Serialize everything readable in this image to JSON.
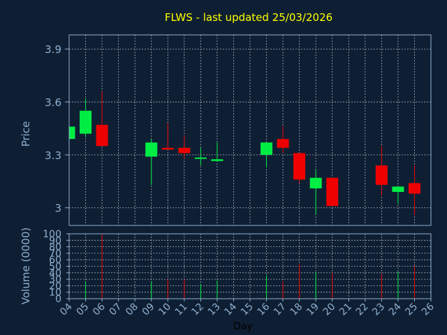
{
  "chart_data": {
    "type": "candlestick",
    "title": "FLWS - last updated 25/03/2026",
    "colors": {
      "background": "#0f1f33",
      "title": "#ffff00",
      "axis_text": "#8fb0d0",
      "grid": "#c8d4e0",
      "frame": "#8fb0d0",
      "up": "#00ee44",
      "down": "#ee0000",
      "xlabel": "#000000"
    },
    "price_panel": {
      "ylabel": "Price",
      "ylim": [
        2.9,
        3.98
      ],
      "yticks": [
        3,
        3.3,
        3.6,
        3.9
      ],
      "ytick_labels": [
        "3",
        "3.3",
        "3.6",
        "3.9"
      ]
    },
    "volume_panel": {
      "ylabel": "Volume (0000)",
      "ylim": [
        0,
        100
      ],
      "yticks": [
        0,
        10,
        20,
        30,
        40,
        50,
        60,
        70,
        80,
        90,
        100
      ],
      "ytick_labels": [
        "0",
        "10",
        "20",
        "30",
        "40",
        "50",
        "60",
        "70",
        "80",
        "90",
        "100"
      ]
    },
    "x_axis": {
      "xlabel": "Day",
      "ticks": [
        "04",
        "05",
        "06",
        "07",
        "08",
        "09",
        "10",
        "11",
        "12",
        "13",
        "14",
        "15",
        "16",
        "17",
        "18",
        "19",
        "20",
        "21",
        "22",
        "23",
        "24",
        "25",
        "26"
      ]
    },
    "candles": [
      {
        "day": "04",
        "open": 3.39,
        "high": 3.46,
        "low": 3.39,
        "close": 3.46,
        "volume": 0
      },
      {
        "day": "05",
        "open": 3.42,
        "high": 3.62,
        "low": 3.4,
        "close": 3.55,
        "volume": 27
      },
      {
        "day": "06",
        "open": 3.47,
        "high": 3.66,
        "low": 3.35,
        "close": 3.35,
        "volume": 100
      },
      {
        "day": "09",
        "open": 3.29,
        "high": 3.39,
        "low": 3.13,
        "close": 3.37,
        "volume": 27
      },
      {
        "day": "10",
        "open": 3.34,
        "high": 3.48,
        "low": 3.33,
        "close": 3.33,
        "volume": 30
      },
      {
        "day": "11",
        "open": 3.34,
        "high": 3.41,
        "low": 3.28,
        "close": 3.31,
        "volume": 30
      },
      {
        "day": "12",
        "open": 3.28,
        "high": 3.34,
        "low": 3.24,
        "close": 3.285,
        "volume": 23
      },
      {
        "day": "13",
        "open": 3.265,
        "high": 3.37,
        "low": 3.26,
        "close": 3.275,
        "volume": 28
      },
      {
        "day": "16",
        "open": 3.3,
        "high": 3.37,
        "low": 3.23,
        "close": 3.37,
        "volume": 36
      },
      {
        "day": "17",
        "open": 3.39,
        "high": 3.46,
        "low": 3.31,
        "close": 3.34,
        "volume": 27
      },
      {
        "day": "18",
        "open": 3.31,
        "high": 3.31,
        "low": 3.14,
        "close": 3.16,
        "volume": 53
      },
      {
        "day": "19",
        "open": 3.11,
        "high": 3.22,
        "low": 2.96,
        "close": 3.17,
        "volume": 41
      },
      {
        "day": "20",
        "open": 3.17,
        "high": 3.17,
        "low": 3.01,
        "close": 3.01,
        "volume": 40
      },
      {
        "day": "23",
        "open": 3.24,
        "high": 3.35,
        "low": 3.07,
        "close": 3.13,
        "volume": 39
      },
      {
        "day": "24",
        "open": 3.09,
        "high": 3.12,
        "low": 3.02,
        "close": 3.12,
        "volume": 42
      },
      {
        "day": "25",
        "open": 3.14,
        "high": 3.24,
        "low": 2.96,
        "close": 3.08,
        "volume": 51
      }
    ]
  }
}
